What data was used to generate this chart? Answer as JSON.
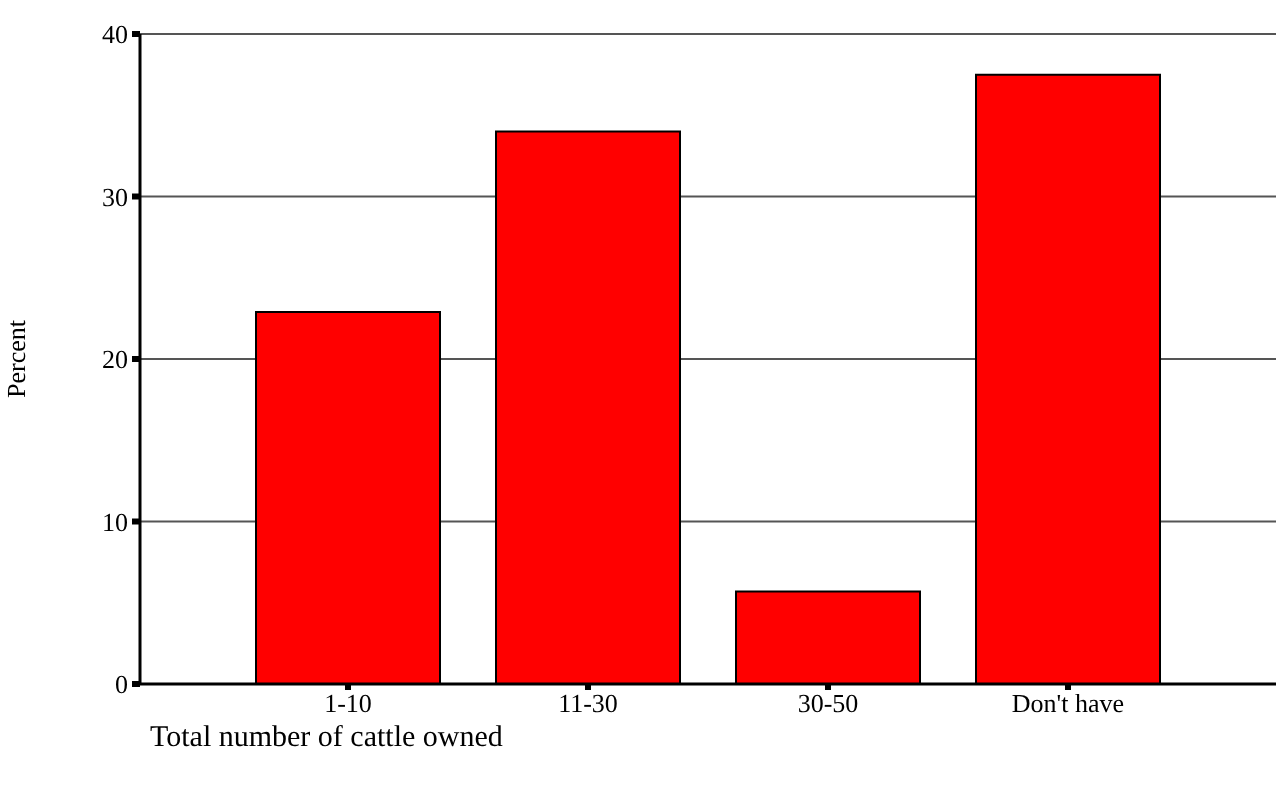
{
  "chart_data": {
    "type": "bar",
    "xlabel": "Total number of cattle owned",
    "ylabel": "Percent",
    "categories": [
      "1-10",
      "11-30",
      "30-50",
      "Don't have"
    ],
    "values": [
      22.9,
      34.0,
      5.7,
      37.5
    ],
    "color": "#ff0000",
    "ylim": [
      0,
      40
    ],
    "yticks": [
      0,
      10,
      20,
      30,
      40
    ],
    "grid": "y"
  }
}
